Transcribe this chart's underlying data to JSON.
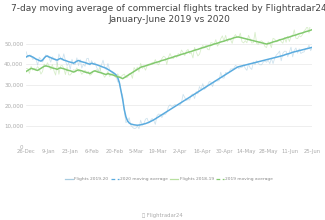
{
  "title": "7-day moving average of commercial flights tracked by Flightradar24\nJanuary-June 2019 vs 2020",
  "title_fontsize": 6.5,
  "background_color": "#ffffff",
  "grid_color": "#e8e8e8",
  "flights2020_color": "#a8cce0",
  "ma2020_color": "#5aabdf",
  "flights2019_color": "#b8e0a0",
  "ma2019_color": "#82c96e",
  "legend_labels": [
    "Flights 2019-20",
    "2020 moving average",
    "Flights 2018-19",
    "2019 moving average"
  ],
  "ylim": [
    0,
    58000
  ],
  "yticks": [
    0,
    10000,
    20000,
    30000,
    40000,
    50000
  ],
  "ytick_labels": [
    "0",
    "10,\n000",
    "20,\n000",
    "30,\n000",
    "40,\n000",
    "50,\n000"
  ],
  "xtick_labels": [
    "26-Dec",
    "9-Jan",
    "23-Jan",
    "6-Feb",
    "20-Feb",
    "5-Mar",
    "19-Mar",
    "2-Apr",
    "16-Apr",
    "30-Apr",
    "14-May",
    "28-May",
    "11-Jun",
    "25-Jun"
  ],
  "ma2020_values": [
    43500,
    44000,
    44200,
    43800,
    43500,
    43000,
    42500,
    42200,
    41800,
    41500,
    42000,
    43000,
    43800,
    44000,
    43500,
    43200,
    42800,
    42500,
    42200,
    42000,
    42500,
    42800,
    42500,
    42000,
    41800,
    41500,
    41200,
    41000,
    40800,
    40500,
    41000,
    41500,
    41800,
    41500,
    41200,
    41000,
    40800,
    40500,
    40200,
    40000,
    40500,
    40200,
    40000,
    39800,
    39500,
    39200,
    38900,
    38600,
    38300,
    38000,
    37500,
    37000,
    36500,
    36000,
    35500,
    34800,
    33500,
    31000,
    27000,
    23000,
    18000,
    14500,
    12500,
    11500,
    11000,
    10800,
    10600,
    10500,
    10400,
    10500,
    10600,
    10800,
    11000,
    11200,
    11500,
    11800,
    12200,
    12600,
    13000,
    13500,
    14000,
    14500,
    15000,
    15500,
    16000,
    16500,
    17000,
    17500,
    18000,
    18500,
    19000,
    19500,
    20000,
    20500,
    21000,
    21500,
    22000,
    22500,
    23000,
    23500,
    24000,
    24500,
    25000,
    25500,
    26000,
    26500,
    27000,
    27500,
    28000,
    28500,
    29000,
    29500,
    30000,
    30500,
    31000,
    31500,
    32000,
    32500,
    33000,
    33500,
    34000,
    34500,
    35000,
    35500,
    36000,
    36500,
    37000,
    37500,
    38000,
    38500,
    38800,
    39000,
    39200,
    39400,
    39600,
    39800,
    40000,
    40200,
    40400,
    40600,
    40800,
    41000,
    41200,
    41400,
    41600,
    41800,
    42000,
    42200,
    42400,
    42600,
    42800,
    43000,
    43200,
    43400,
    43600,
    43800,
    44000,
    44200,
    44500,
    44800,
    45000,
    45200,
    45500,
    45800,
    46000,
    46200,
    46400,
    46600,
    46800,
    47000,
    47200,
    47400,
    47600,
    47800,
    48000,
    48200
  ],
  "ma2019_values": [
    36500,
    37000,
    37500,
    38000,
    37800,
    37500,
    37200,
    37000,
    37500,
    38000,
    38500,
    39000,
    39200,
    39000,
    38800,
    38500,
    38200,
    38000,
    37800,
    37500,
    38000,
    38200,
    38000,
    37800,
    37500,
    37200,
    37000,
    36800,
    36500,
    36200,
    36500,
    37000,
    37200,
    37000,
    36800,
    36500,
    36200,
    36000,
    35800,
    35500,
    36000,
    36500,
    36800,
    36500,
    36200,
    36000,
    35800,
    35500,
    35200,
    35000,
    35500,
    35200,
    35000,
    34800,
    34500,
    34200,
    33900,
    33700,
    33400,
    33000,
    33500,
    34000,
    34500,
    35000,
    35500,
    36000,
    36500,
    37000,
    37500,
    38000,
    38500,
    38800,
    39000,
    39200,
    39500,
    39800,
    40000,
    40200,
    40500,
    40800,
    41000,
    41200,
    41500,
    41800,
    42000,
    42200,
    42500,
    42800,
    43000,
    43200,
    43500,
    43800,
    44000,
    44200,
    44500,
    44800,
    45000,
    45200,
    45500,
    45800,
    46000,
    46200,
    46500,
    46800,
    47000,
    47200,
    47500,
    47800,
    48000,
    48200,
    48500,
    48800,
    49000,
    49200,
    49500,
    49800,
    50000,
    50200,
    50500,
    50800,
    51000,
    51200,
    51500,
    51800,
    52000,
    52200,
    52500,
    52800,
    53000,
    53200,
    53200,
    53000,
    52800,
    52600,
    52400,
    52200,
    52000,
    51800,
    51600,
    51400,
    51200,
    51000,
    50800,
    50600,
    50400,
    50200,
    50000,
    49800,
    50000,
    50200,
    50500,
    50800,
    51000,
    51200,
    51500,
    51800,
    52000,
    52200,
    52500,
    52800,
    53000,
    53200,
    53500,
    53800,
    54000,
    54200,
    54500,
    54800,
    55000,
    55200,
    55500,
    55800,
    56000,
    56200,
    56500,
    56800
  ]
}
